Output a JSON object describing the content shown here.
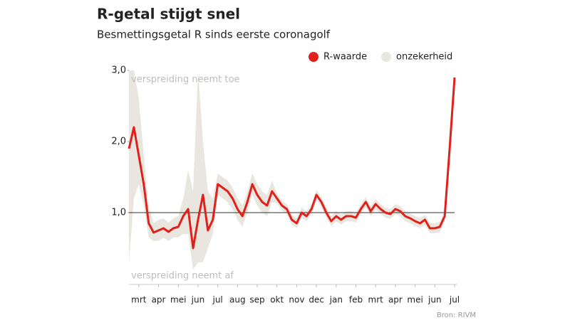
{
  "chart_data": {
    "type": "line",
    "title": "R-getal stijgt snel",
    "subtitle": "Besmettingsgetal R sinds eerste coronagolf",
    "source": "Bron: RIVM",
    "annotations": [
      "verspreiding neemt toe",
      "verspreiding neemt af"
    ],
    "categories": [
      null,
      null,
      "mrt",
      null,
      null,
      null,
      "apr",
      null,
      null,
      null,
      "mei",
      null,
      null,
      null,
      "jun",
      null,
      null,
      null,
      "jul",
      null,
      null,
      null,
      "aug",
      null,
      null,
      null,
      "sep",
      null,
      null,
      null,
      "okt",
      null,
      null,
      null,
      "nov",
      null,
      null,
      null,
      "dec",
      null,
      null,
      null,
      "jan",
      null,
      null,
      null,
      "feb",
      null,
      null,
      null,
      "mrt",
      null,
      null,
      null,
      "apr",
      null,
      null,
      null,
      "mei",
      null,
      null,
      null,
      "jun",
      null,
      null,
      null,
      "jul"
    ],
    "series": [
      {
        "name": "R-waarde",
        "color": "#e0201b",
        "values": [
          1.9,
          2.2,
          1.8,
          1.4,
          0.85,
          0.72,
          0.75,
          0.78,
          0.73,
          0.78,
          0.8,
          0.95,
          1.05,
          0.5,
          0.9,
          1.25,
          0.75,
          0.9,
          1.4,
          1.35,
          1.3,
          1.2,
          1.05,
          0.95,
          1.15,
          1.4,
          1.25,
          1.15,
          1.1,
          1.3,
          1.2,
          1.1,
          1.05,
          0.9,
          0.85,
          1.0,
          0.95,
          1.05,
          1.25,
          1.15,
          1.0,
          0.88,
          0.95,
          0.9,
          0.95,
          0.95,
          0.93,
          1.05,
          1.15,
          1.02,
          1.12,
          1.05,
          1.0,
          0.98,
          1.05,
          1.02,
          0.95,
          0.92,
          0.88,
          0.85,
          0.9,
          0.78,
          0.78,
          0.8,
          0.95,
          1.9,
          2.9
        ]
      },
      {
        "name": "onzekerheid",
        "color": "#e8e6de",
        "lower": [
          0.3,
          1.2,
          1.4,
          1.1,
          0.65,
          0.6,
          0.6,
          0.65,
          0.6,
          0.65,
          0.65,
          0.7,
          0.7,
          0.2,
          0.3,
          0.3,
          0.5,
          0.7,
          1.25,
          1.2,
          1.15,
          1.05,
          0.9,
          0.8,
          1.0,
          1.25,
          1.1,
          1.0,
          0.95,
          1.15,
          1.13,
          1.03,
          0.98,
          0.83,
          0.78,
          0.93,
          0.88,
          0.98,
          1.18,
          1.08,
          0.93,
          0.81,
          0.88,
          0.83,
          0.88,
          0.88,
          0.86,
          0.98,
          1.08,
          0.95,
          1.05,
          0.98,
          0.93,
          0.91,
          0.98,
          0.95,
          0.88,
          0.85,
          0.81,
          0.78,
          0.83,
          0.71,
          0.71,
          0.73,
          0.88,
          1.83,
          2.83
        ],
        "upper": [
          3.0,
          3.0,
          2.6,
          1.8,
          1.1,
          0.85,
          0.9,
          0.92,
          0.86,
          0.92,
          0.95,
          1.2,
          1.6,
          1.3,
          3.0,
          2.0,
          1.3,
          1.2,
          1.55,
          1.5,
          1.45,
          1.35,
          1.2,
          1.1,
          1.3,
          1.55,
          1.4,
          1.3,
          1.25,
          1.45,
          1.27,
          1.17,
          1.12,
          0.97,
          0.92,
          1.07,
          1.02,
          1.12,
          1.32,
          1.22,
          1.07,
          0.95,
          1.02,
          0.97,
          1.02,
          1.02,
          1.0,
          1.12,
          1.22,
          1.09,
          1.19,
          1.12,
          1.07,
          1.05,
          1.12,
          1.09,
          1.02,
          0.99,
          0.95,
          0.92,
          0.97,
          0.85,
          0.85,
          0.87,
          1.02,
          1.97,
          2.97
        ]
      }
    ],
    "ylim": [
      0,
      3
    ],
    "yticks": [
      {
        "value": 1,
        "label": "1,0"
      },
      {
        "value": 2,
        "label": "2,0"
      },
      {
        "value": 3,
        "label": "3,0"
      }
    ],
    "reference_line": 1,
    "legend": "top-right"
  }
}
